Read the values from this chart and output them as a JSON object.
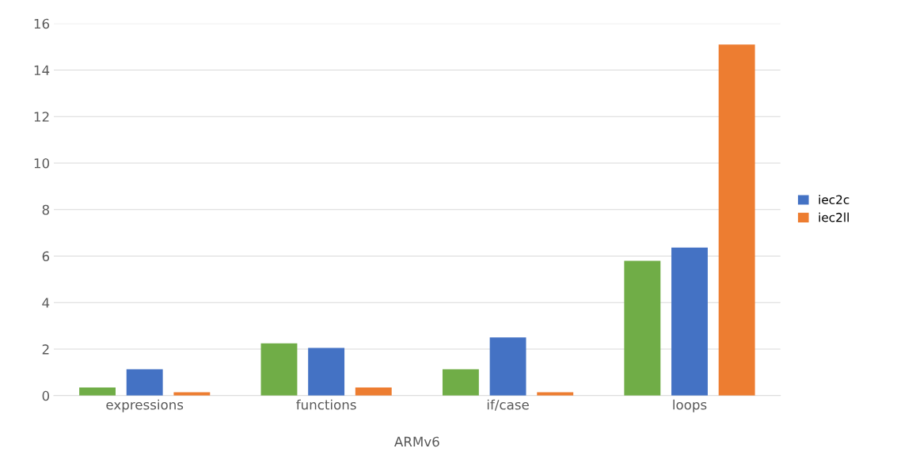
{
  "chart_data": {
    "type": "bar",
    "xlabel": "ARMv6",
    "categories": [
      "expressions",
      "functions",
      "if/case",
      "loops"
    ],
    "series": [
      {
        "color": "#70ad47",
        "values": [
          0.35,
          2.25,
          1.13,
          5.8
        ]
      },
      {
        "name": "iec2c",
        "color": "#4472c4",
        "values": [
          1.13,
          2.05,
          2.5,
          6.37
        ]
      },
      {
        "name": "iec2ll",
        "color": "#ed7d31",
        "values": [
          0.15,
          0.35,
          0.15,
          15.1
        ]
      }
    ],
    "ylim": [
      0,
      16
    ],
    "yticks": [
      0,
      2,
      4,
      6,
      8,
      10,
      12,
      14,
      16
    ],
    "grid": "y",
    "legend": "right"
  }
}
